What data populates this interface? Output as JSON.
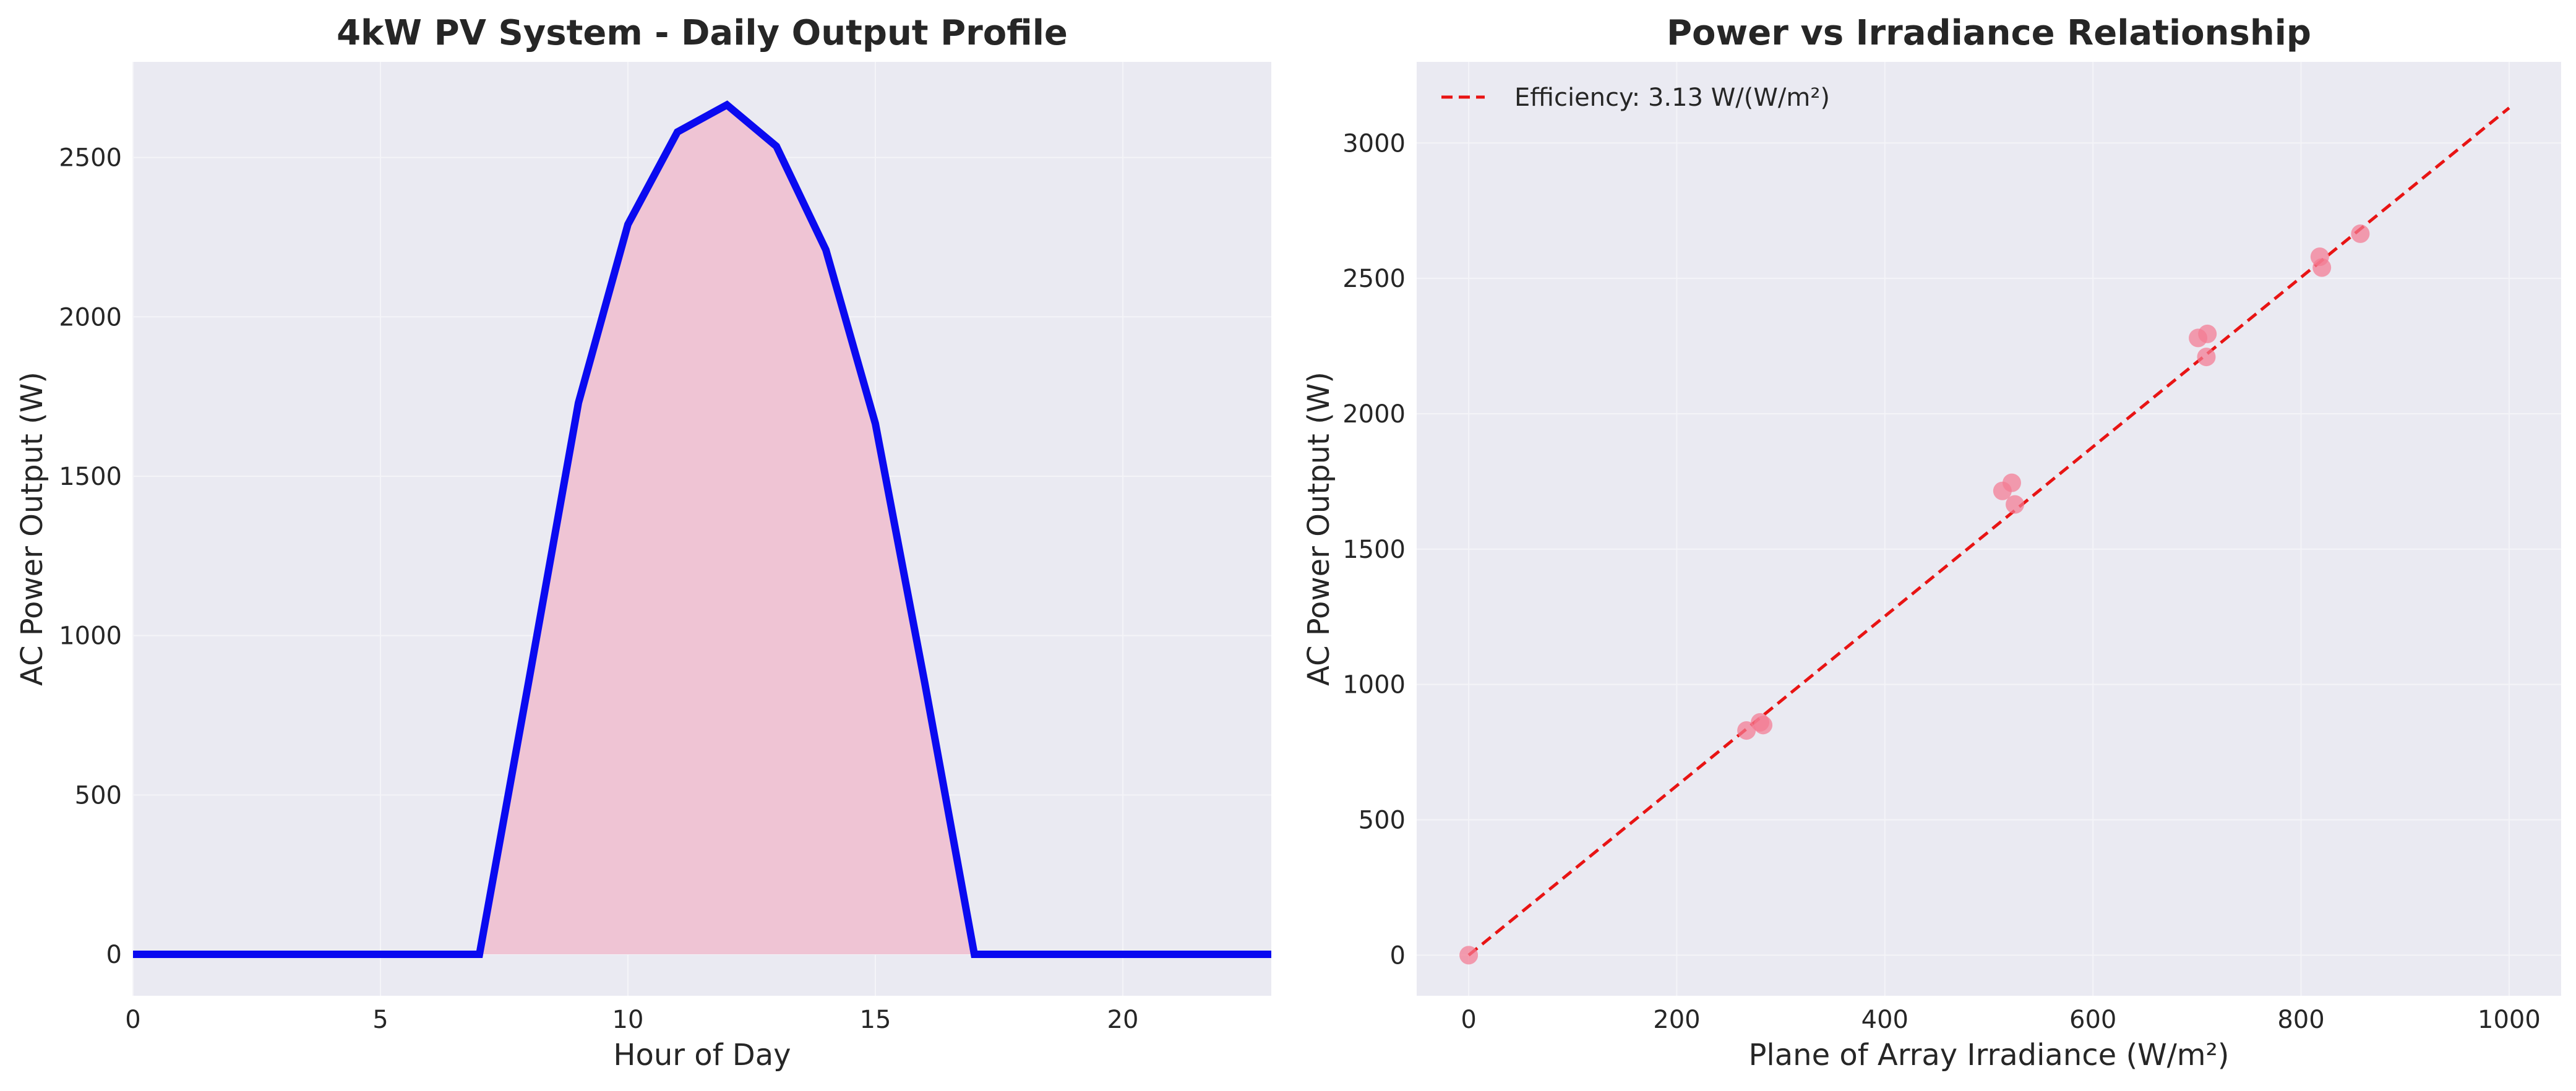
{
  "colors": {
    "axes_bg": "#EAEAF2",
    "grid": "#F4F4F8",
    "profile_line": "#0A0AF0",
    "profile_fill": "#EFC4D4",
    "scatter_point": "#F47A92",
    "fit_line": "#E81414",
    "text": "#262626"
  },
  "chart_data": [
    {
      "type": "area",
      "title": "4kW PV System - Daily Output Profile",
      "xlabel": "Hour of Day",
      "ylabel": "AC Power Output (W)",
      "xlim": [
        0,
        23
      ],
      "ylim": [
        -130,
        2800
      ],
      "xticks": [
        0,
        5,
        10,
        15,
        20
      ],
      "yticks": [
        0,
        500,
        1000,
        1500,
        2000,
        2500
      ],
      "grid": true,
      "x": [
        0,
        1,
        2,
        3,
        4,
        5,
        6,
        7,
        8,
        9,
        10,
        11,
        12,
        13,
        14,
        15,
        16,
        17,
        18,
        19,
        20,
        21,
        22,
        23
      ],
      "series": [
        {
          "values": [
            0,
            0,
            0,
            0,
            0,
            0,
            0,
            0,
            860,
            1730,
            2290,
            2580,
            2665,
            2535,
            2210,
            1665,
            850,
            0,
            0,
            0,
            0,
            0,
            0,
            0
          ]
        }
      ]
    },
    {
      "type": "scatter",
      "title": "Power vs Irradiance Relationship",
      "xlabel": "Plane of Array Irradiance (W/m²)",
      "ylabel": "AC Power Output (W)",
      "xlim": [
        -50,
        1050
      ],
      "ylim": [
        -150,
        3300
      ],
      "xticks": [
        0,
        200,
        400,
        600,
        800,
        1000
      ],
      "yticks": [
        0,
        500,
        1000,
        1500,
        2000,
        2500,
        3000
      ],
      "grid": true,
      "legend_position": "top-left",
      "points": [
        {
          "x": 0,
          "y": 0
        },
        {
          "x": 267,
          "y": 830
        },
        {
          "x": 280,
          "y": 860
        },
        {
          "x": 283,
          "y": 850
        },
        {
          "x": 513,
          "y": 1715
        },
        {
          "x": 522,
          "y": 1745
        },
        {
          "x": 525,
          "y": 1665
        },
        {
          "x": 701,
          "y": 2280
        },
        {
          "x": 710,
          "y": 2295
        },
        {
          "x": 709,
          "y": 2210
        },
        {
          "x": 818,
          "y": 2580
        },
        {
          "x": 820,
          "y": 2540
        },
        {
          "x": 857,
          "y": 2665
        }
      ],
      "fit_line": {
        "name": "Efficiency: 3.13 W/(W/m²)",
        "x": [
          0,
          1000
        ],
        "y": [
          0,
          3130
        ]
      }
    }
  ]
}
